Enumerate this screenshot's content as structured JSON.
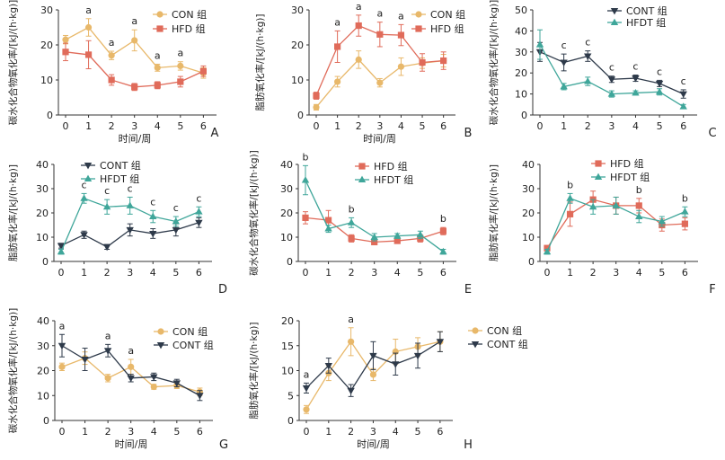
{
  "chart_data": [
    {
      "panel": "A",
      "type": "line",
      "ylabel": "碳水化合物氧化率/[kJ/(h·kg)]",
      "xlabel": "时间/周",
      "x": [
        0,
        1,
        2,
        3,
        4,
        5,
        6
      ],
      "xticks": [
        "0",
        "1",
        "2",
        "3",
        "4",
        "5",
        "6"
      ],
      "ylim": [
        0,
        30
      ],
      "yticks": [
        "0",
        "10",
        "20",
        "30"
      ],
      "legend_position": "top-right",
      "series": [
        {
          "name": "CON 组",
          "color": "#E8B86A",
          "marker": "circle",
          "values": [
            21.5,
            25.0,
            17.0,
            21.3,
            13.5,
            14.0,
            12.0
          ],
          "errors": [
            1.2,
            2.5,
            1.2,
            3.0,
            1.0,
            1.2,
            1.5
          ]
        },
        {
          "name": "HFD 组",
          "color": "#E06B5A",
          "marker": "square",
          "values": [
            18.0,
            17.2,
            10.0,
            8.0,
            8.5,
            9.5,
            12.5
          ],
          "errors": [
            2.5,
            4.0,
            1.5,
            1.0,
            1.0,
            1.5,
            1.5
          ]
        }
      ],
      "annotations": [
        {
          "x": 1,
          "text": "a"
        },
        {
          "x": 2,
          "text": "a"
        },
        {
          "x": 3,
          "text": "a"
        },
        {
          "x": 4,
          "text": "a"
        },
        {
          "x": 5,
          "text": "a"
        }
      ]
    },
    {
      "panel": "B",
      "type": "line",
      "ylabel": "脂肪氧化率/[kJ/(h·kg)]",
      "xlabel": "时间/周",
      "x": [
        0,
        1,
        2,
        3,
        4,
        5,
        6
      ],
      "xticks": [
        "0",
        "1",
        "2",
        "3",
        "4",
        "5",
        "6"
      ],
      "ylim": [
        0,
        30
      ],
      "yticks": [
        "0",
        "10",
        "20",
        "30"
      ],
      "legend_position": "top-right",
      "series": [
        {
          "name": "CON 组",
          "color": "#E8B86A",
          "marker": "circle",
          "values": [
            2.2,
            9.5,
            15.8,
            9.2,
            13.8,
            14.8,
            15.5
          ],
          "errors": [
            0.8,
            1.5,
            2.5,
            1.2,
            2.5,
            1.5,
            1.8
          ]
        },
        {
          "name": "HFD 组",
          "color": "#E06B5A",
          "marker": "square",
          "values": [
            5.5,
            19.5,
            25.5,
            23.0,
            22.8,
            15.0,
            15.5
          ],
          "errors": [
            1.0,
            4.5,
            3.0,
            3.5,
            3.0,
            2.5,
            2.5
          ]
        }
      ],
      "annotations": [
        {
          "x": 1,
          "text": "a"
        },
        {
          "x": 2,
          "text": "a"
        },
        {
          "x": 3,
          "text": "a"
        },
        {
          "x": 4,
          "text": "a"
        }
      ]
    },
    {
      "panel": "C",
      "type": "line",
      "ylabel": "碳水化合物氧化率/[kJ/(h·kg)]",
      "xlabel": "",
      "x": [
        0,
        1,
        2,
        3,
        4,
        5,
        6
      ],
      "xticks": [
        "0",
        "1",
        "2",
        "3",
        "4",
        "5",
        "6"
      ],
      "ylim": [
        0,
        50
      ],
      "yticks": [
        "0",
        "10",
        "20",
        "30",
        "40",
        "50"
      ],
      "legend_position": "top-right",
      "series": [
        {
          "name": "CONT 组",
          "color": "#2E3A4A",
          "marker": "tri-down",
          "values": [
            30.0,
            25.0,
            28.0,
            17.0,
            17.5,
            15.0,
            10.0
          ],
          "errors": [
            4.5,
            4.0,
            2.5,
            1.5,
            1.5,
            1.5,
            2.0
          ]
        },
        {
          "name": "HFDT 组",
          "color": "#3FA69A",
          "marker": "tri-up",
          "values": [
            33.5,
            13.5,
            16.0,
            10.0,
            10.5,
            11.0,
            4.0
          ],
          "errors": [
            7.0,
            1.5,
            2.0,
            1.5,
            1.0,
            1.5,
            1.0
          ]
        }
      ],
      "annotations": [
        {
          "x": 1,
          "text": "c"
        },
        {
          "x": 2,
          "text": "c"
        },
        {
          "x": 3,
          "text": "c"
        },
        {
          "x": 4,
          "text": "c"
        },
        {
          "x": 5,
          "text": "c"
        },
        {
          "x": 6,
          "text": "c"
        }
      ]
    },
    {
      "panel": "D",
      "type": "line",
      "ylabel": "脂肪氧化率/[kJ/(h·kg)]",
      "xlabel": "",
      "x": [
        0,
        1,
        2,
        3,
        4,
        5,
        6
      ],
      "xticks": [
        "0",
        "1",
        "2",
        "3",
        "4",
        "5",
        "6"
      ],
      "ylim": [
        0,
        40
      ],
      "yticks": [
        "0",
        "10",
        "20",
        "30",
        "40"
      ],
      "legend_position": "top-left",
      "series": [
        {
          "name": "CONT 组",
          "color": "#2E3A4A",
          "marker": "tri-down",
          "values": [
            6.5,
            11.0,
            6.0,
            13.0,
            11.5,
            13.0,
            16.0
          ],
          "errors": [
            1.0,
            1.5,
            1.0,
            2.5,
            2.0,
            2.5,
            2.0
          ]
        },
        {
          "name": "HFDT 组",
          "color": "#3FA69A",
          "marker": "tri-up",
          "values": [
            4.0,
            26.0,
            22.5,
            23.0,
            18.5,
            16.5,
            20.5
          ],
          "errors": [
            1.0,
            2.0,
            3.0,
            3.5,
            2.5,
            2.0,
            2.0
          ]
        }
      ],
      "annotations": [
        {
          "x": 1,
          "text": "c"
        },
        {
          "x": 2,
          "text": "c"
        },
        {
          "x": 3,
          "text": "c"
        },
        {
          "x": 4,
          "text": "c"
        },
        {
          "x": 5,
          "text": "c"
        },
        {
          "x": 6,
          "text": "c"
        }
      ]
    },
    {
      "panel": "E",
      "type": "line",
      "ylabel": "碳水化合物氧化率/[kJ/(h·kg)]",
      "xlabel": "",
      "x": [
        0,
        1,
        2,
        3,
        4,
        5,
        6
      ],
      "xticks": [
        "0",
        "1",
        "2",
        "3",
        "4",
        "5",
        "6"
      ],
      "ylim": [
        0,
        40
      ],
      "yticks": [
        "0",
        "10",
        "20",
        "30",
        "40"
      ],
      "legend_position": "top-right",
      "series": [
        {
          "name": "HFD 组",
          "color": "#E06B5A",
          "marker": "square",
          "values": [
            18.0,
            17.0,
            9.5,
            8.0,
            8.5,
            9.5,
            12.5
          ],
          "errors": [
            2.5,
            4.0,
            1.5,
            1.0,
            1.0,
            1.5,
            1.5
          ]
        },
        {
          "name": "HFDT 组",
          "color": "#3FA69A",
          "marker": "tri-up",
          "values": [
            33.5,
            13.5,
            16.0,
            10.0,
            10.5,
            11.0,
            4.0
          ],
          "errors": [
            6.0,
            1.5,
            2.0,
            1.5,
            1.0,
            1.5,
            1.0
          ]
        }
      ],
      "annotations": [
        {
          "x": 0,
          "text": "b"
        },
        {
          "x": 2,
          "text": "b"
        },
        {
          "x": 6,
          "text": "b"
        }
      ]
    },
    {
      "panel": "F",
      "type": "line",
      "ylabel": "脂肪氧化率/[kJ/(h·kg)]",
      "xlabel": "",
      "x": [
        0,
        1,
        2,
        3,
        4,
        5,
        6
      ],
      "xticks": [
        "0",
        "1",
        "2",
        "3",
        "4",
        "5",
        "6"
      ],
      "ylim": [
        0,
        40
      ],
      "yticks": [
        "0",
        "10",
        "20",
        "30",
        "40"
      ],
      "legend_position": "top-left",
      "series": [
        {
          "name": "HFD 组",
          "color": "#E06B5A",
          "marker": "square",
          "values": [
            5.5,
            19.5,
            25.5,
            23.0,
            23.0,
            15.0,
            15.5
          ],
          "errors": [
            1.0,
            5.0,
            3.5,
            3.5,
            3.0,
            2.5,
            2.5
          ]
        },
        {
          "name": "HFDT 组",
          "color": "#3FA69A",
          "marker": "tri-up",
          "values": [
            4.0,
            26.0,
            22.5,
            23.0,
            18.5,
            16.5,
            20.5
          ],
          "errors": [
            1.0,
            2.0,
            3.0,
            3.5,
            2.5,
            2.0,
            2.0
          ]
        }
      ],
      "annotations": [
        {
          "x": 1,
          "text": "b"
        },
        {
          "x": 4,
          "text": "b"
        },
        {
          "x": 6,
          "text": "b"
        }
      ]
    },
    {
      "panel": "G",
      "type": "line",
      "ylabel": "碳水化合物氧化率/[kJ/(h·kg)]",
      "xlabel": "时间/周",
      "x": [
        0,
        1,
        2,
        3,
        4,
        5,
        6
      ],
      "xticks": [
        "0",
        "1",
        "2",
        "3",
        "4",
        "5",
        "6"
      ],
      "ylim": [
        0,
        40
      ],
      "yticks": [
        "0",
        "10",
        "20",
        "30",
        "40"
      ],
      "legend_position": "top-right",
      "series": [
        {
          "name": "CON 组",
          "color": "#E8B86A",
          "marker": "circle",
          "values": [
            21.5,
            25.0,
            17.0,
            21.5,
            13.5,
            14.0,
            11.5
          ],
          "errors": [
            1.5,
            2.5,
            1.5,
            3.0,
            1.0,
            1.2,
            1.5
          ]
        },
        {
          "name": "CONT 组",
          "color": "#2E3A4A",
          "marker": "tri-down",
          "values": [
            30.0,
            24.5,
            28.0,
            17.0,
            17.5,
            15.0,
            10.0
          ],
          "errors": [
            4.5,
            4.5,
            2.5,
            1.5,
            1.5,
            1.5,
            2.0
          ]
        }
      ],
      "annotations": [
        {
          "x": 0,
          "text": "a"
        },
        {
          "x": 2,
          "text": "a"
        },
        {
          "x": 3,
          "text": "a"
        }
      ]
    },
    {
      "panel": "H",
      "type": "line",
      "ylabel": "脂肪氧化率/[kJ/(h·kg)]",
      "xlabel": "时间/周",
      "x": [
        0,
        1,
        2,
        3,
        4,
        5,
        6
      ],
      "xticks": [
        "0",
        "1",
        "2",
        "3",
        "4",
        "5",
        "6"
      ],
      "ylim": [
        0,
        20
      ],
      "yticks": [
        "0",
        "5",
        "10",
        "15",
        "20"
      ],
      "legend_position": "right",
      "series": [
        {
          "name": "CON 组",
          "color": "#E8B86A",
          "marker": "circle",
          "values": [
            2.2,
            9.5,
            15.8,
            9.2,
            13.8,
            14.8,
            15.8
          ],
          "errors": [
            0.8,
            1.5,
            2.8,
            1.2,
            2.5,
            1.8,
            2.0
          ]
        },
        {
          "name": "CONT 组",
          "color": "#2E3A4A",
          "marker": "tri-down",
          "values": [
            6.5,
            11.0,
            6.0,
            13.0,
            11.3,
            13.0,
            15.8
          ],
          "errors": [
            1.0,
            1.5,
            1.2,
            2.8,
            2.2,
            2.5,
            2.0
          ]
        }
      ],
      "annotations": [
        {
          "x": 0,
          "text": "a"
        },
        {
          "x": 2,
          "text": "a"
        }
      ]
    }
  ]
}
